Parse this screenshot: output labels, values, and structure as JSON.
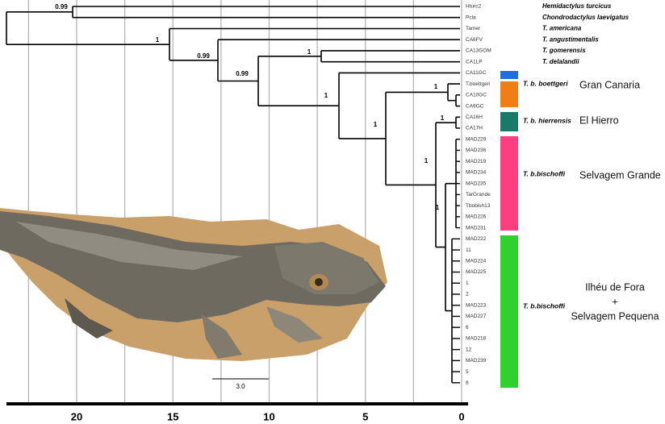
{
  "tips": [
    "Hturc2",
    "Pcla",
    "Tamer",
    "CA6FV",
    "CA13GOM",
    "CA1LP",
    "CA11GC",
    "T.boettgeri",
    "CA10GC",
    "CA9GC",
    "CA16H",
    "CA17H",
    "MAD229",
    "MAD236",
    "MAD219",
    "MAD234",
    "MAD235",
    "TarGrande",
    "Tbobish13",
    "MAD226",
    "MAD231",
    "MAD222",
    "11",
    "MAD224",
    "MAD225",
    "1",
    "2",
    "MAD223",
    "MAD227",
    "6",
    "MAD218",
    "12",
    "MAD239",
    "5",
    "8"
  ],
  "species": [
    "Hemidactylus turcicus",
    "Chondrodactylus laevigatus",
    "T. americana",
    "T. angustimentalis",
    "T. gomerensis",
    "T. delalandii"
  ],
  "support": [
    "0.99",
    "1",
    "0.99",
    "1",
    "0.99",
    "1",
    "1",
    "1",
    "1",
    "1",
    "1"
  ],
  "groups": [
    {
      "taxon": "T. b. boettgeri",
      "region": "Gran Canaria"
    },
    {
      "taxon": "T. b. hierrensis",
      "region": "El Hierro"
    },
    {
      "taxon": "T. b.bischoffi",
      "region": "Selvagem Grande"
    },
    {
      "taxon": "T. b.bischoffi",
      "region": [
        "Ilhéu de Fora",
        "+",
        "Selvagem Pequena"
      ]
    }
  ],
  "scale_bar": "3.0",
  "axis": {
    "ticks": [
      20,
      15,
      10,
      5,
      0
    ]
  }
}
